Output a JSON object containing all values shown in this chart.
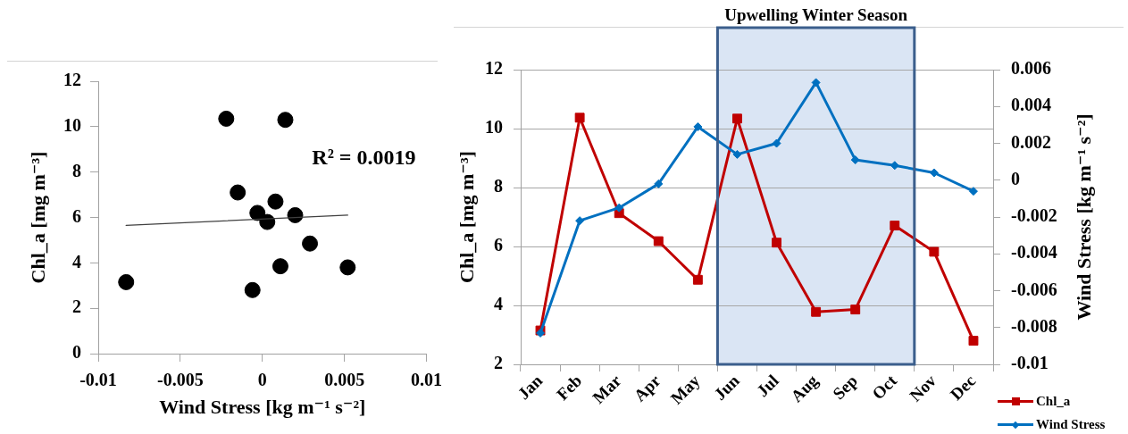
{
  "chart_data": [
    {
      "type": "scatter",
      "xlabel": "Wind Stress [kg m⁻¹ s⁻²]",
      "ylabel": "Chl_a [mg m⁻³]",
      "xlim": [
        -0.01,
        0.01
      ],
      "xticks": [
        -0.01,
        -0.005,
        0,
        0.005,
        0.01
      ],
      "ylim": [
        0,
        12
      ],
      "yticks": [
        0,
        2,
        4,
        6,
        8,
        10,
        12
      ],
      "grid": false,
      "marker": "circle",
      "annotations": [
        "R² = 0.0019"
      ],
      "series": [
        {
          "type": "scatter",
          "color": "#000000",
          "x": [
            -0.0083,
            -0.0022,
            -0.0015,
            -0.0003,
            0.0029,
            0.0014,
            0.002,
            0.0052,
            0.0011,
            0.0008,
            0.0003,
            -0.0006
          ],
          "values": [
            3.15,
            10.35,
            7.1,
            6.2,
            4.85,
            10.3,
            6.1,
            3.8,
            3.85,
            6.7,
            5.8,
            2.8
          ]
        },
        {
          "type": "line",
          "color": "#404040",
          "marker": "none",
          "x": [
            -0.0083,
            0.0052
          ],
          "values": [
            5.65,
            6.1
          ]
        }
      ]
    },
    {
      "type": "line",
      "categories": [
        "Jan",
        "Feb",
        "Mar",
        "Apr",
        "May",
        "Jun",
        "Jul",
        "Aug",
        "Sep",
        "Oct",
        "Nov",
        "Dec"
      ],
      "ylabel": "Chl_a [mg m⁻³]",
      "y2label": "Wind Stress [kg m⁻¹ s⁻²]",
      "ylim": [
        2,
        12
      ],
      "yticks": [
        2,
        4,
        6,
        8,
        10,
        12
      ],
      "y2lim": [
        -0.01,
        0.006
      ],
      "y2ticks": [
        -0.01,
        -0.008,
        -0.006,
        -0.004,
        -0.002,
        0,
        0.002,
        0.004,
        0.006
      ],
      "grid": "y",
      "legend": "bottom right",
      "bands": [
        {
          "axis": "x",
          "from": "Jun",
          "to": "Oct",
          "label": "Upwelling Winter Season",
          "color": "#dae5f4"
        }
      ],
      "series": [
        {
          "name": "Chl_a",
          "color": "#c00000",
          "marker": "square",
          "values": [
            3.15,
            10.37,
            7.13,
            6.18,
            4.87,
            10.34,
            6.13,
            3.78,
            3.86,
            6.71,
            5.82,
            2.8
          ]
        },
        {
          "name": "Wind Stress",
          "color": "#0070c0",
          "marker": "diamond",
          "axis": "y2",
          "values": [
            -0.0083,
            -0.0022,
            -0.0015,
            -0.0002,
            0.0029,
            0.0014,
            0.002,
            0.0053,
            0.0011,
            0.0008,
            0.0004,
            -0.0006
          ]
        }
      ]
    }
  ]
}
